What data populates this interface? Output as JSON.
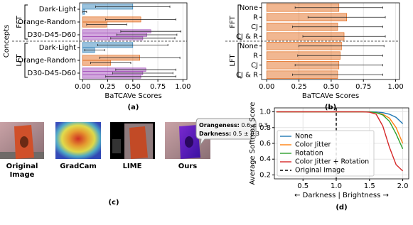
{
  "chart_data": [
    {
      "type": "hbar",
      "caption": "(a)",
      "xlabel": "BaTCAVe Scores",
      "ylabel": "Concepts",
      "xlim": [
        -0.03,
        1.04
      ],
      "xticks": [
        {
          "value": 0,
          "label": "0.00"
        },
        {
          "value": 0.25,
          "label": "0.25"
        },
        {
          "value": 0.5,
          "label": "0.50"
        },
        {
          "value": 0.75,
          "label": "0.75"
        },
        {
          "value": 1,
          "label": "1.00"
        }
      ],
      "grid": true,
      "groups": [
        {
          "name": "FFT",
          "rows": [
            {
              "label": "Dark-Light",
              "color": "#1f77b4",
              "values": [
                0.5,
                0.02
              ],
              "errors": [
                0.37,
                0.02
              ]
            },
            {
              "label": "Orange-Random",
              "color": "#e0600a",
              "values": [
                0.58,
                0.24
              ],
              "errors": [
                0.35,
                0.2
              ]
            },
            {
              "label": "D30-D45-D60",
              "color": "#9b3fb5",
              "values": [
                0.68,
                0.64,
                0.6
              ],
              "errors": [
                0.3,
                0.3,
                0.32
              ]
            }
          ]
        },
        {
          "name": "LFT",
          "rows": [
            {
              "label": "Dark-Light",
              "color": "#1f77b4",
              "values": [
                0.5,
                0.12
              ],
              "errors": [
                0.35,
                0.1
              ]
            },
            {
              "label": "Orange-Random",
              "color": "#e0600a",
              "values": [
                0.57,
                0.28
              ],
              "errors": [
                0.4,
                0.2
              ]
            },
            {
              "label": "D30-D45-D60",
              "color": "#9b3fb5",
              "values": [
                0.63,
                0.6,
                0.58
              ],
              "errors": [
                0.3,
                0.3,
                0.35
              ]
            }
          ]
        }
      ]
    },
    {
      "type": "hbar",
      "caption": "(b)",
      "xlabel": "BaTCAVe Scores",
      "xlim": [
        -0.04,
        1.03
      ],
      "xticks": [
        {
          "value": 0,
          "label": "0.00"
        },
        {
          "value": 0.25,
          "label": "0.25"
        },
        {
          "value": 0.5,
          "label": "0.50"
        },
        {
          "value": 0.75,
          "label": "0.75"
        },
        {
          "value": 1,
          "label": "1.00"
        }
      ],
      "grid": true,
      "groups": [
        {
          "name": "FFT",
          "rows": [
            {
              "label": "None",
              "color": "#e0600a",
              "values": [
                0.56
              ],
              "errors": [
                0.34
              ]
            },
            {
              "label": "R",
              "color": "#e0600a",
              "values": [
                0.62
              ],
              "errors": [
                0.3
              ]
            },
            {
              "label": "CJ",
              "color": "#e0600a",
              "values": [
                0.55
              ],
              "errors": [
                0.35
              ]
            },
            {
              "label": "CJ & R",
              "color": "#e0600a",
              "values": [
                0.6
              ],
              "errors": [
                0.32
              ]
            }
          ]
        },
        {
          "name": "LFT",
          "rows": [
            {
              "label": "None",
              "color": "#e0600a",
              "values": [
                0.58
              ],
              "errors": [
                0.33
              ]
            },
            {
              "label": "R",
              "color": "#e0600a",
              "values": [
                0.57
              ],
              "errors": [
                0.33
              ]
            },
            {
              "label": "CJ",
              "color": "#e0600a",
              "values": [
                0.56
              ],
              "errors": [
                0.34
              ]
            },
            {
              "label": "CJ & R",
              "color": "#e0600a",
              "values": [
                0.55
              ],
              "errors": [
                0.35
              ]
            }
          ]
        }
      ]
    },
    {
      "type": "line",
      "caption": "(d)",
      "xlabel": "← Darkness | Brightness →",
      "ylabel": "Average Softmax Score",
      "xlim": [
        0.07,
        2.09
      ],
      "ylim": [
        0.15,
        1.05
      ],
      "xticks": [
        0.5,
        {
          "value": 1,
          "label": "1.0"
        },
        1.5,
        {
          "value": 2,
          "label": "2.0"
        }
      ],
      "yticks": [
        0.2,
        0.4,
        0.6,
        0.8,
        {
          "value": 1,
          "label": "1.0"
        }
      ],
      "grid": true,
      "legend": "lower-left",
      "x": [
        0.1,
        0.2,
        0.3,
        0.4,
        0.5,
        0.6,
        0.7,
        0.8,
        0.9,
        1.0,
        1.1,
        1.2,
        1.3,
        1.4,
        1.5,
        1.6,
        1.7,
        1.8,
        1.9,
        2.0
      ],
      "series": [
        {
          "name": "None",
          "color": "#1f77b4",
          "values": [
            1,
            1,
            1,
            1,
            1,
            1,
            1,
            1,
            1,
            1,
            1,
            1,
            1,
            1,
            1,
            0.998,
            0.99,
            0.97,
            0.93,
            0.85
          ]
        },
        {
          "name": "Color Jitter",
          "color": "#ff7f0e",
          "values": [
            1,
            1,
            1,
            1,
            1,
            1,
            1,
            1,
            1,
            1,
            1,
            1,
            1,
            1,
            0.998,
            0.99,
            0.97,
            0.92,
            0.8,
            0.6
          ]
        },
        {
          "name": "Rotation",
          "color": "#2ca02c",
          "values": [
            1,
            1,
            1,
            1,
            1,
            1,
            1,
            1,
            1,
            1,
            1,
            1,
            1,
            1,
            1,
            0.99,
            0.96,
            0.88,
            0.72,
            0.53
          ]
        },
        {
          "name": "Color Jitter + Rotation",
          "color": "#d62728",
          "values": [
            1,
            1,
            1,
            1,
            1,
            1,
            1,
            1,
            1,
            1,
            1,
            1,
            1,
            1,
            0.995,
            0.97,
            0.82,
            0.55,
            0.33,
            0.25
          ]
        }
      ],
      "vline": {
        "x": 1,
        "label": "Original Image",
        "color": "#000000",
        "style": "dashed"
      }
    }
  ],
  "image_panel": {
    "caption": "(c)",
    "labels": [
      [
        "Original",
        "Image"
      ],
      [
        "GradCam"
      ],
      [
        "LIME"
      ],
      [
        "Ours"
      ]
    ],
    "tooltip": [
      {
        "key": "Orangeness:",
        "value": "0.6 ± 0.3"
      },
      {
        "key": "Darkness:",
        "value": "0.5 ± 0.3"
      }
    ]
  }
}
